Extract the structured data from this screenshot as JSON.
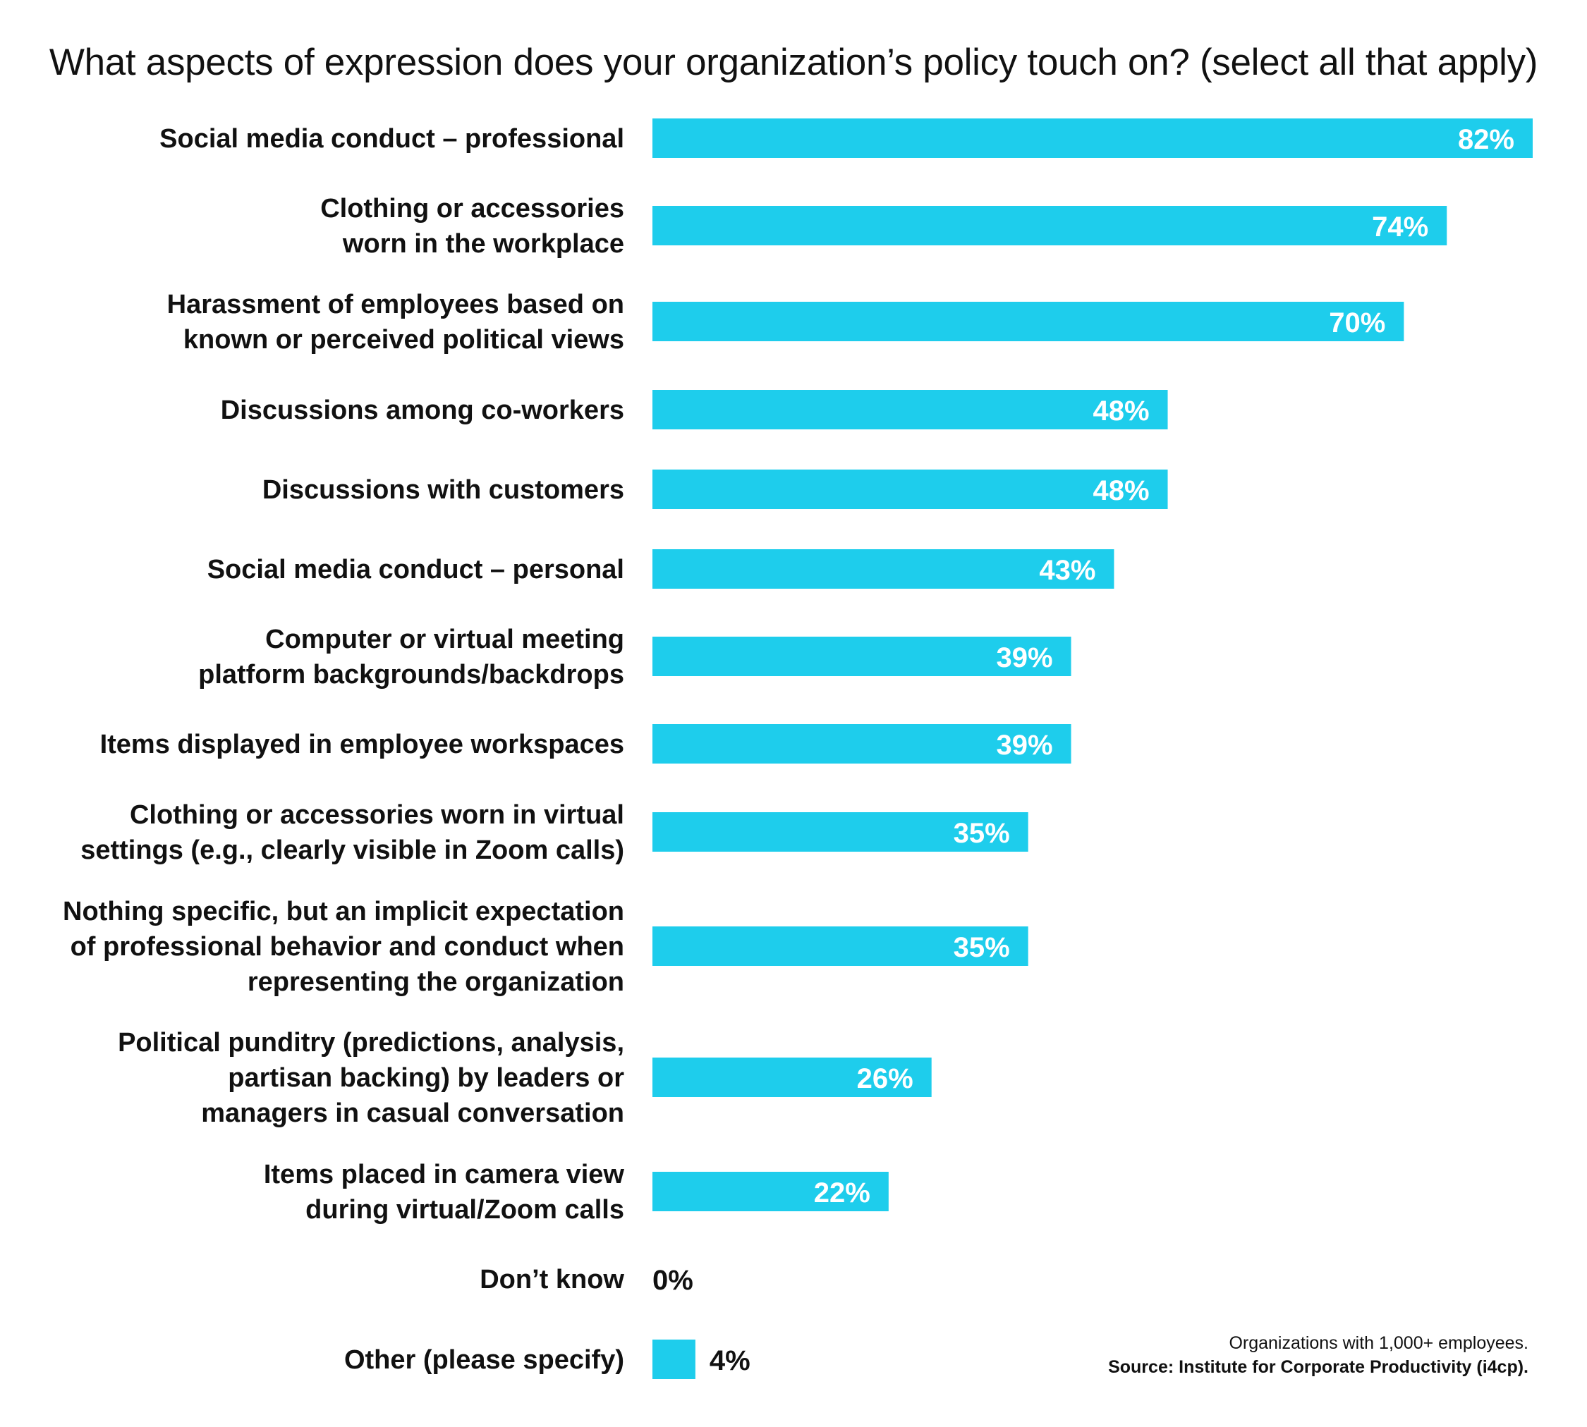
{
  "chart_data": {
    "type": "bar",
    "orientation": "horizontal",
    "title": "What aspects of expression does your organization’s policy touch on? (select all that apply)",
    "categories": [
      [
        "Social media conduct – professional"
      ],
      [
        "Clothing or accessories",
        "worn in the workplace"
      ],
      [
        "Harassment of employees based on",
        "known or perceived political views"
      ],
      [
        "Discussions among co-workers"
      ],
      [
        "Discussions with customers"
      ],
      [
        "Social media conduct – personal"
      ],
      [
        "Computer or virtual meeting",
        "platform backgrounds/backdrops"
      ],
      [
        "Items displayed in employee workspaces"
      ],
      [
        "Clothing or accessories worn in virtual",
        "settings (e.g., clearly visible in Zoom calls)"
      ],
      [
        "Nothing specific, but an implicit expectation",
        "of professional behavior and conduct when",
        "representing the organization"
      ],
      [
        "Political punditry (predictions, analysis,",
        "partisan backing) by leaders or",
        "managers in casual conversation"
      ],
      [
        "Items placed in camera view",
        "during virtual/Zoom calls"
      ],
      [
        "Don’t know"
      ],
      [
        "Other (please specify)"
      ]
    ],
    "values": [
      82,
      74,
      70,
      48,
      48,
      43,
      39,
      39,
      35,
      35,
      26,
      22,
      0,
      4
    ],
    "value_labels": [
      "82%",
      "74%",
      "70%",
      "48%",
      "48%",
      "43%",
      "39%",
      "39%",
      "35%",
      "35%",
      "26%",
      "22%",
      "0%",
      "4%"
    ],
    "xlim": [
      0,
      82
    ],
    "bar_color": "#1ecdec",
    "grid": false,
    "legend": "none",
    "note": "Organizations with 1,000+ employees.",
    "source": "Source: Institute for Corporate Productivity (i4cp)."
  }
}
